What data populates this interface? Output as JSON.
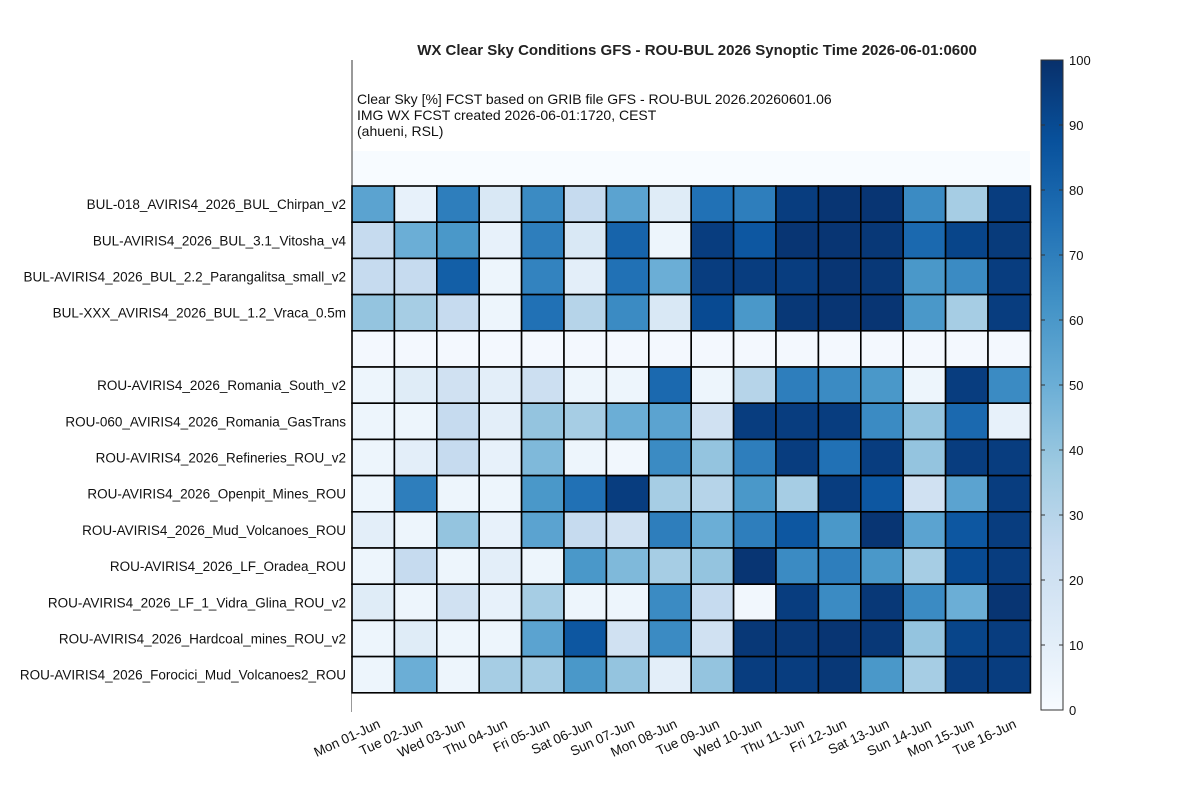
{
  "chart_data": {
    "type": "heatmap",
    "title": "WX Clear Sky Conditions GFS - ROU-BUL 2026 Synoptic Time 2026-06-01:0600",
    "info_lines": [
      "Clear Sky [%]  FCST based on GRIB file GFS - ROU-BUL 2026.20260601.06",
      "IMG WX FCST created 2026-06-01:1720, CEST",
      "(ahueni, RSL)"
    ],
    "x_categories": [
      "Mon 01-Jun",
      "Tue 02-Jun",
      "Wed 03-Jun",
      "Thu 04-Jun",
      "Fri 05-Jun",
      "Sat 06-Jun",
      "Sun 07-Jun",
      "Mon 08-Jun",
      "Tue 09-Jun",
      "Wed 10-Jun",
      "Thu 11-Jun",
      "Fri 12-Jun",
      "Sat 13-Jun",
      "Sun 14-Jun",
      "Mon 15-Jun",
      "Tue 16-Jun"
    ],
    "y_categories": [
      "BUL-018_AVIRIS4_2026_BUL_Chirpan_v2",
      "BUL-AVIRIS4_2026_BUL_3.1_Vitosha_v4",
      "BUL-AVIRIS4_2026_BUL_2.2_Parangalitsa_small_v2",
      "BUL-XXX_AVIRIS4_2026_BUL_1.2_Vraca_0.5m",
      "",
      "ROU-AVIRIS4_2026_Romania_South_v2",
      "ROU-060_AVIRIS4_2026_Romania_GasTrans",
      "ROU-AVIRIS4_2026_Refineries_ROU_v2",
      "ROU-AVIRIS4_2026_Openpit_Mines_ROU",
      "ROU-AVIRIS4_2026_Mud_Volcanoes_ROU",
      "ROU-AVIRIS4_2026_LF_Oradea_ROU",
      "ROU-AVIRIS4_2026_LF_1_Vidra_Glina_ROU_v2",
      "ROU-AVIRIS4_2026_Hardcoal_mines_ROU_v2",
      "ROU-AVIRIS4_2026_Forocici_Mud_Volcanoes2_ROU"
    ],
    "values": [
      [
        55,
        8,
        70,
        15,
        65,
        25,
        55,
        12,
        75,
        70,
        95,
        98,
        98,
        65,
        35,
        95
      ],
      [
        25,
        50,
        60,
        8,
        70,
        15,
        80,
        5,
        95,
        85,
        98,
        98,
        97,
        78,
        92,
        96
      ],
      [
        25,
        25,
        82,
        5,
        68,
        10,
        75,
        50,
        95,
        95,
        95,
        98,
        97,
        60,
        65,
        95
      ],
      [
        40,
        35,
        25,
        5,
        75,
        30,
        65,
        15,
        90,
        60,
        97,
        98,
        98,
        60,
        35,
        95
      ],
      [
        2,
        2,
        2,
        2,
        2,
        2,
        2,
        2,
        2,
        2,
        2,
        2,
        2,
        2,
        2,
        2
      ],
      [
        5,
        12,
        20,
        10,
        22,
        5,
        5,
        78,
        5,
        30,
        70,
        65,
        60,
        5,
        95,
        65
      ],
      [
        5,
        5,
        25,
        10,
        40,
        35,
        50,
        55,
        20,
        95,
        95,
        95,
        65,
        40,
        78,
        8
      ],
      [
        5,
        10,
        25,
        8,
        45,
        5,
        3,
        65,
        40,
        70,
        95,
        75,
        95,
        40,
        95,
        95
      ],
      [
        5,
        70,
        5,
        5,
        60,
        75,
        95,
        35,
        30,
        60,
        35,
        95,
        85,
        20,
        55,
        95
      ],
      [
        10,
        5,
        40,
        8,
        55,
        25,
        20,
        70,
        50,
        70,
        85,
        60,
        98,
        55,
        85,
        95
      ],
      [
        5,
        25,
        5,
        10,
        5,
        60,
        45,
        35,
        40,
        98,
        65,
        70,
        60,
        35,
        90,
        95
      ],
      [
        12,
        5,
        20,
        8,
        35,
        5,
        5,
        65,
        25,
        3,
        95,
        65,
        97,
        65,
        50,
        98
      ],
      [
        5,
        12,
        5,
        5,
        55,
        85,
        20,
        65,
        20,
        97,
        97,
        98,
        97,
        40,
        92,
        95
      ],
      [
        5,
        50,
        5,
        35,
        35,
        60,
        40,
        10,
        40,
        95,
        95,
        97,
        60,
        35,
        95,
        95
      ]
    ],
    "colorbar": {
      "min": 0,
      "max": 100,
      "ticks": [
        0,
        10,
        20,
        30,
        40,
        50,
        60,
        70,
        80,
        90,
        100
      ]
    }
  }
}
